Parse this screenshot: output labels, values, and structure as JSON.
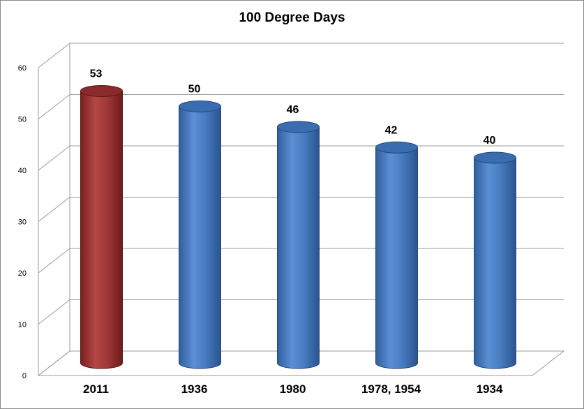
{
  "chart_data": {
    "type": "bar",
    "title": "100 Degree Days",
    "xlabel": "",
    "ylabel": "",
    "categories": [
      "2011",
      "1936",
      "1980",
      "1978, 1954",
      "1934"
    ],
    "values": [
      53,
      50,
      46,
      42,
      40
    ],
    "ylim": [
      0,
      60
    ],
    "yticks": [
      0,
      10,
      20,
      30,
      40,
      50,
      60
    ],
    "grid": true,
    "legend": "none",
    "bar_colors": [
      "#a33a3a",
      "#4a7ec2",
      "#4a7ec2",
      "#4a7ec2",
      "#4a7ec2"
    ]
  }
}
